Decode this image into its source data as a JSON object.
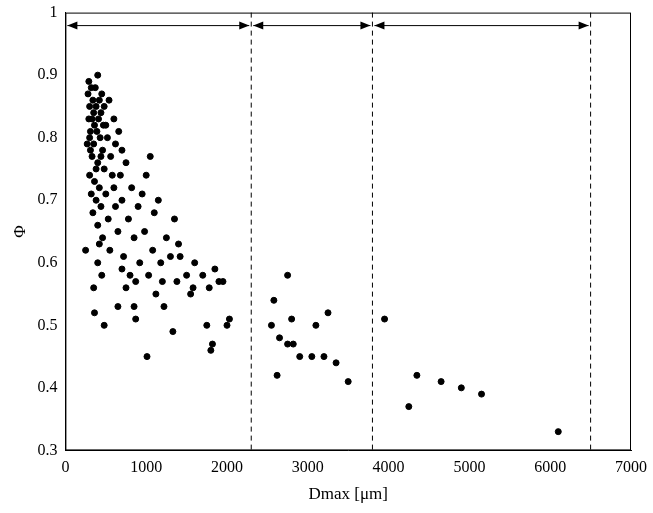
{
  "chart_data": {
    "type": "scatter",
    "x_label": "Dmax [μm]",
    "y_label": "Φ",
    "xlim": [
      0,
      7000
    ],
    "xticks": [
      0,
      1000,
      2000,
      3000,
      4000,
      5000,
      6000,
      7000
    ],
    "ylim": [
      0.3,
      1
    ],
    "yticks": [
      0.3,
      0.4,
      0.5,
      0.6,
      0.7,
      0.8,
      0.9,
      1
    ],
    "grid": false,
    "color": "#000000",
    "marker": "circle",
    "regions": [
      [
        0,
        2300
      ],
      [
        2300,
        3800
      ],
      [
        3800,
        6500
      ]
    ],
    "x": [
      250,
      280,
      290,
      300,
      300,
      310,
      320,
      330,
      340,
      350,
      350,
      360,
      370,
      380,
      390,
      400,
      400,
      410,
      420,
      430,
      440,
      450,
      460,
      470,
      480,
      300,
      320,
      340,
      360,
      380,
      400,
      420,
      440,
      460,
      480,
      500,
      520,
      540,
      560,
      580,
      600,
      620,
      350,
      360,
      400,
      420,
      450,
      480,
      500,
      530,
      550,
      600,
      620,
      650,
      680,
      700,
      720,
      750,
      780,
      800,
      820,
      850,
      870,
      900,
      920,
      950,
      980,
      1000,
      1010,
      1030,
      1050,
      1080,
      1100,
      1120,
      1150,
      1180,
      1200,
      1220,
      1250,
      1300,
      1330,
      1350,
      1380,
      1400,
      1420,
      1500,
      1550,
      1580,
      1600,
      1700,
      1750,
      1780,
      1800,
      1820,
      1850,
      1900,
      1950,
      2000,
      2030,
      650,
      700,
      750,
      850,
      870,
      660,
      700,
      380,
      330,
      440,
      270,
      290,
      310,
      2550,
      2580,
      2620,
      2650,
      2750,
      2800,
      2820,
      2900,
      3050,
      3100,
      3200,
      3250,
      3350,
      3500,
      2750,
      3950,
      4250,
      4350,
      4650,
      4900,
      5150,
      6100
    ],
    "values": [
      0.62,
      0.87,
      0.89,
      0.85,
      0.8,
      0.78,
      0.88,
      0.83,
      0.86,
      0.84,
      0.79,
      0.82,
      0.88,
      0.85,
      0.81,
      0.9,
      0.76,
      0.83,
      0.86,
      0.8,
      0.84,
      0.87,
      0.78,
      0.82,
      0.85,
      0.74,
      0.71,
      0.68,
      0.73,
      0.7,
      0.66,
      0.72,
      0.69,
      0.64,
      0.75,
      0.71,
      0.8,
      0.86,
      0.77,
      0.74,
      0.83,
      0.69,
      0.56,
      0.52,
      0.6,
      0.63,
      0.58,
      0.5,
      0.82,
      0.67,
      0.62,
      0.72,
      0.79,
      0.65,
      0.74,
      0.7,
      0.61,
      0.76,
      0.67,
      0.58,
      0.72,
      0.64,
      0.57,
      0.69,
      0.6,
      0.71,
      0.65,
      0.74,
      0.45,
      0.58,
      0.77,
      0.62,
      0.68,
      0.55,
      0.7,
      0.6,
      0.57,
      0.53,
      0.64,
      0.61,
      0.49,
      0.67,
      0.57,
      0.63,
      0.61,
      0.58,
      0.55,
      0.56,
      0.6,
      0.58,
      0.5,
      0.56,
      0.46,
      0.47,
      0.59,
      0.57,
      0.57,
      0.5,
      0.51,
      0.53,
      0.59,
      0.56,
      0.53,
      0.51,
      0.81,
      0.78,
      0.75,
      0.77,
      0.77,
      0.79,
      0.83,
      0.81,
      0.5,
      0.54,
      0.42,
      0.48,
      0.58,
      0.51,
      0.47,
      0.45,
      0.45,
      0.5,
      0.45,
      0.52,
      0.44,
      0.41,
      0.47,
      0.51,
      0.37,
      0.42,
      0.41,
      0.4,
      0.39,
      0.33
    ]
  }
}
